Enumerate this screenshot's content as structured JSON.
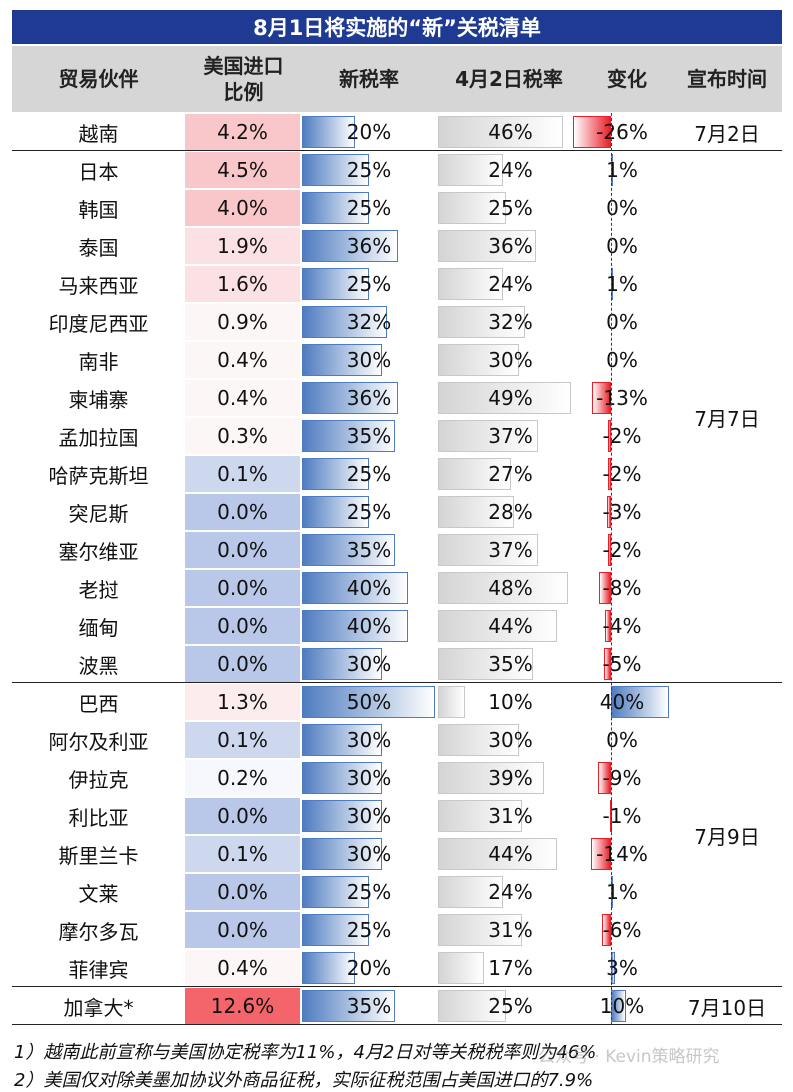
{
  "title": "8月1日将实施的“新”关税清单",
  "headers": {
    "partner": "贸易伙伴",
    "share_line1": "美国进口",
    "share_line2": "比例",
    "new_rate": "新税率",
    "apr2_rate": "4月2日税率",
    "change": "变化",
    "announce": "宣布时间"
  },
  "rows": [
    {
      "partner": "越南",
      "share": "4.2%",
      "new": "20%",
      "apr2": "46%",
      "change": "-26%"
    },
    {
      "partner": "日本",
      "share": "4.5%",
      "new": "25%",
      "apr2": "24%",
      "change": "1%"
    },
    {
      "partner": "韩国",
      "share": "4.0%",
      "new": "25%",
      "apr2": "25%",
      "change": "0%"
    },
    {
      "partner": "泰国",
      "share": "1.9%",
      "new": "36%",
      "apr2": "36%",
      "change": "0%"
    },
    {
      "partner": "马来西亚",
      "share": "1.6%",
      "new": "25%",
      "apr2": "24%",
      "change": "1%"
    },
    {
      "partner": "印度尼西亚",
      "share": "0.9%",
      "new": "32%",
      "apr2": "32%",
      "change": "0%"
    },
    {
      "partner": "南非",
      "share": "0.4%",
      "new": "30%",
      "apr2": "30%",
      "change": "0%"
    },
    {
      "partner": "柬埔寨",
      "share": "0.4%",
      "new": "36%",
      "apr2": "49%",
      "change": "-13%"
    },
    {
      "partner": "孟加拉国",
      "share": "0.3%",
      "new": "35%",
      "apr2": "37%",
      "change": "-2%"
    },
    {
      "partner": "哈萨克斯坦",
      "share": "0.1%",
      "new": "25%",
      "apr2": "27%",
      "change": "-2%"
    },
    {
      "partner": "突尼斯",
      "share": "0.0%",
      "new": "25%",
      "apr2": "28%",
      "change": "-3%"
    },
    {
      "partner": "塞尔维亚",
      "share": "0.0%",
      "new": "35%",
      "apr2": "37%",
      "change": "-2%"
    },
    {
      "partner": "老挝",
      "share": "0.0%",
      "new": "40%",
      "apr2": "48%",
      "change": "-8%"
    },
    {
      "partner": "缅甸",
      "share": "0.0%",
      "new": "40%",
      "apr2": "44%",
      "change": "-4%"
    },
    {
      "partner": "波黑",
      "share": "0.0%",
      "new": "30%",
      "apr2": "35%",
      "change": "-5%"
    },
    {
      "partner": "巴西",
      "share": "1.3%",
      "new": "50%",
      "apr2": "10%",
      "change": "40%"
    },
    {
      "partner": "阿尔及利亚",
      "share": "0.1%",
      "new": "30%",
      "apr2": "30%",
      "change": "0%"
    },
    {
      "partner": "伊拉克",
      "share": "0.2%",
      "new": "30%",
      "apr2": "39%",
      "change": "-9%"
    },
    {
      "partner": "利比亚",
      "share": "0.0%",
      "new": "30%",
      "apr2": "31%",
      "change": "-1%"
    },
    {
      "partner": "斯里兰卡",
      "share": "0.1%",
      "new": "30%",
      "apr2": "44%",
      "change": "-14%"
    },
    {
      "partner": "文莱",
      "share": "0.0%",
      "new": "25%",
      "apr2": "24%",
      "change": "1%"
    },
    {
      "partner": "摩尔多瓦",
      "share": "0.0%",
      "new": "25%",
      "apr2": "31%",
      "change": "-6%"
    },
    {
      "partner": "菲律宾",
      "share": "0.4%",
      "new": "20%",
      "apr2": "17%",
      "change": "3%"
    },
    {
      "partner": "加拿大*",
      "share": "12.6%",
      "new": "35%",
      "apr2": "25%",
      "change": "10%"
    }
  ],
  "groups": [
    {
      "date": "7月2日",
      "start": 0,
      "end": 0
    },
    {
      "date": "7月7日",
      "start": 1,
      "end": 14
    },
    {
      "date": "7月9日",
      "start": 15,
      "end": 22
    },
    {
      "date": "7月10日",
      "start": 23,
      "end": 23
    }
  ],
  "notes": [
    "1）越南此前宣称与美国协定税率为11%，4月2日对等关税税率则为46%",
    "2）美国仅对除美墨加协议外商品征税，实际征税范围占美国进口的7.9%"
  ],
  "watermark": "公众号 · Kevin策略研究",
  "colors": {
    "title_bg": "#1f3a93",
    "header_bg": "#d6d6d6",
    "blue": "#4f7cc0",
    "red": "#e8202a",
    "gray": "#d4d4d4"
  }
}
